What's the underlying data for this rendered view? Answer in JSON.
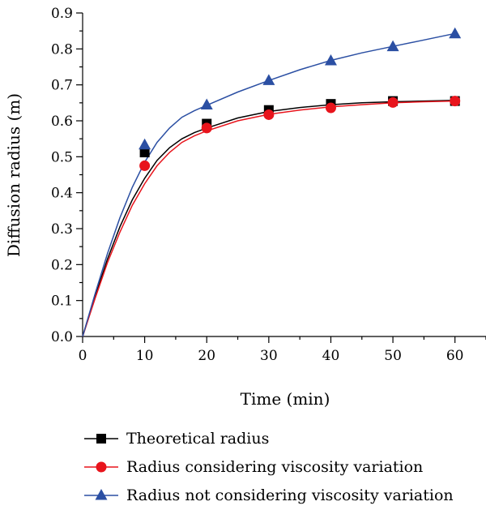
{
  "chart_data": {
    "type": "line",
    "title": "",
    "xlabel": "Time (min)",
    "ylabel": "Diffusion radius (m)",
    "xlim": [
      0,
      65
    ],
    "ylim": [
      0,
      0.9
    ],
    "xticks": [
      0,
      10,
      20,
      30,
      40,
      50,
      60
    ],
    "yticks": [
      0.0,
      0.1,
      0.2,
      0.3,
      0.4,
      0.5,
      0.6,
      0.7,
      0.8,
      0.9
    ],
    "ytick_labels": [
      "0.0",
      "0.1",
      "0.2",
      "0.3",
      "0.4",
      "0.5",
      "0.6",
      "0.7",
      "0.8",
      "0.9"
    ],
    "xtick_labels": [
      "0",
      "10",
      "20",
      "30",
      "40",
      "50",
      "60"
    ],
    "grid": false,
    "legend_position": "bottom",
    "series": [
      {
        "name": "Theoretical radius",
        "color": "#000000",
        "marker": "square",
        "x": [
          10,
          20,
          30,
          40,
          50,
          60
        ],
        "y": [
          0.512,
          0.592,
          0.63,
          0.647,
          0.655,
          0.655
        ],
        "curve_x": [
          0,
          2,
          4,
          6,
          8,
          10,
          12,
          14,
          16,
          18,
          20,
          25,
          30,
          35,
          40,
          45,
          50,
          55,
          60
        ],
        "curve_y": [
          0,
          0.11,
          0.215,
          0.305,
          0.38,
          0.44,
          0.49,
          0.525,
          0.55,
          0.567,
          0.58,
          0.608,
          0.626,
          0.637,
          0.645,
          0.65,
          0.653,
          0.655,
          0.657
        ]
      },
      {
        "name": "Radius considering viscosity variation",
        "color": "#e8141c",
        "marker": "circle",
        "x": [
          10,
          20,
          30,
          40,
          50,
          60
        ],
        "y": [
          0.475,
          0.58,
          0.617,
          0.636,
          0.651,
          0.655
        ],
        "curve_x": [
          0,
          2,
          4,
          6,
          8,
          10,
          12,
          14,
          16,
          18,
          20,
          25,
          30,
          35,
          40,
          45,
          50,
          55,
          60
        ],
        "curve_y": [
          0,
          0.105,
          0.205,
          0.29,
          0.365,
          0.425,
          0.475,
          0.512,
          0.54,
          0.558,
          0.572,
          0.6,
          0.618,
          0.63,
          0.639,
          0.645,
          0.65,
          0.653,
          0.655
        ]
      },
      {
        "name": "Radius not considering viscosity variation",
        "color": "#2b4fa3",
        "marker": "triangle",
        "x": [
          10,
          20,
          30,
          40,
          50,
          60
        ],
        "y": [
          0.533,
          0.644,
          0.712,
          0.767,
          0.806,
          0.842
        ],
        "curve_x": [
          0,
          2,
          4,
          6,
          8,
          10,
          12,
          14,
          16,
          18,
          20,
          25,
          30,
          35,
          40,
          45,
          50,
          55,
          60
        ],
        "curve_y": [
          0,
          0.118,
          0.23,
          0.33,
          0.415,
          0.485,
          0.54,
          0.58,
          0.61,
          0.628,
          0.643,
          0.68,
          0.712,
          0.742,
          0.768,
          0.789,
          0.807,
          0.825,
          0.843
        ]
      }
    ]
  }
}
